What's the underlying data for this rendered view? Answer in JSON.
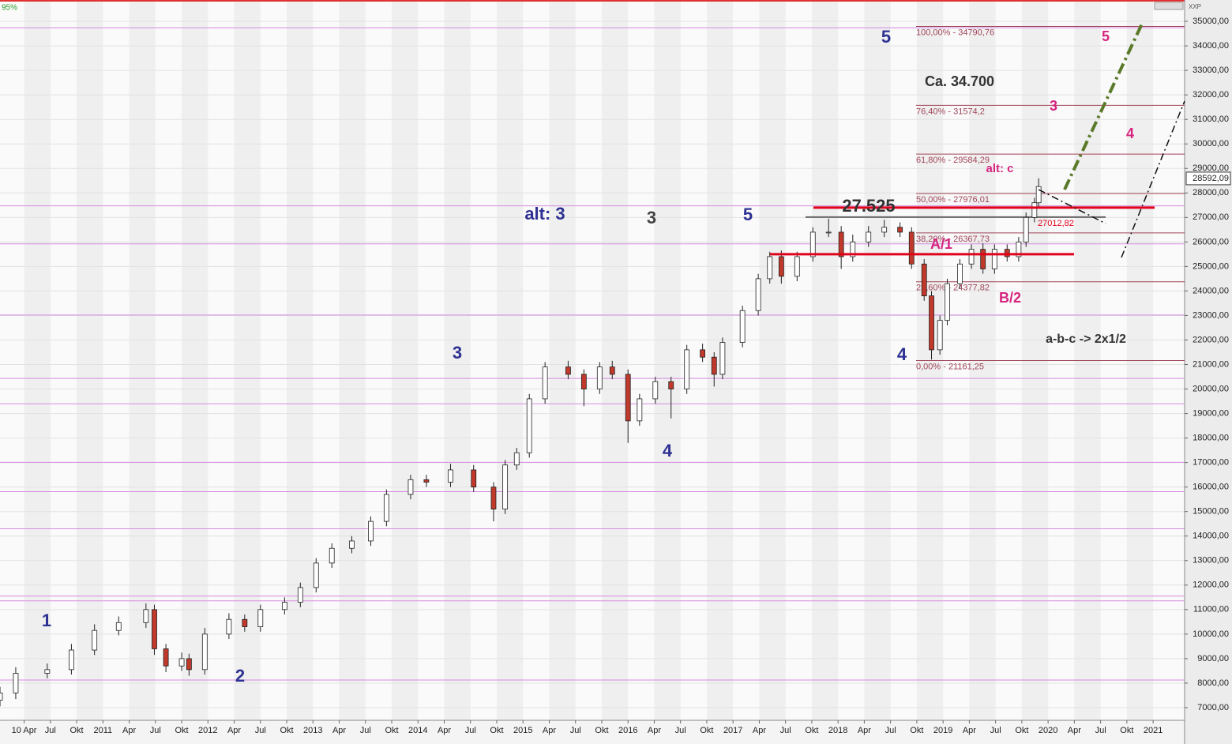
{
  "chart_data": {
    "type": "candlestick",
    "top_left_label": "95%",
    "corner_label": "XXP",
    "xlim": [
      2010.02,
      2021.3
    ],
    "ylim": [
      6483,
      35872
    ],
    "xticks": [
      {
        "value": 2010.25,
        "label": "10 Apr"
      },
      {
        "value": 2010.5,
        "label": "Jul"
      },
      {
        "value": 2010.75,
        "label": "Okt"
      },
      2011,
      {
        "value": 2011.25,
        "label": "Apr"
      },
      {
        "value": 2011.5,
        "label": "Jul"
      },
      {
        "value": 2011.75,
        "label": "Okt"
      },
      2012,
      {
        "value": 2012.25,
        "label": "Apr"
      },
      {
        "value": 2012.5,
        "label": "Jul"
      },
      {
        "value": 2012.75,
        "label": "Okt"
      },
      2013,
      {
        "value": 2013.25,
        "label": "Apr"
      },
      {
        "value": 2013.5,
        "label": "Jul"
      },
      {
        "value": 2013.75,
        "label": "Okt"
      },
      2014,
      {
        "value": 2014.25,
        "label": "Apr"
      },
      {
        "value": 2014.5,
        "label": "Jul"
      },
      {
        "value": 2014.75,
        "label": "Okt"
      },
      2015,
      {
        "value": 2015.25,
        "label": "Apr"
      },
      {
        "value": 2015.5,
        "label": "Jul"
      },
      {
        "value": 2015.75,
        "label": "Okt"
      },
      2016,
      {
        "value": 2016.25,
        "label": "Apr"
      },
      {
        "value": 2016.5,
        "label": "Jul"
      },
      {
        "value": 2016.75,
        "label": "Okt"
      },
      2017,
      {
        "value": 2017.25,
        "label": "Apr"
      },
      {
        "value": 2017.5,
        "label": "Jul"
      },
      {
        "value": 2017.75,
        "label": "Okt"
      },
      2018,
      {
        "value": 2018.25,
        "label": "Apr"
      },
      {
        "value": 2018.5,
        "label": "Jul"
      },
      {
        "value": 2018.75,
        "label": "Okt"
      },
      2019,
      {
        "value": 2019.25,
        "label": "Apr"
      },
      {
        "value": 2019.5,
        "label": "Jul"
      },
      {
        "value": 2019.75,
        "label": "Okt"
      },
      2020,
      {
        "value": 2020.25,
        "label": "Apr"
      },
      {
        "value": 2020.5,
        "label": "Jul"
      },
      {
        "value": 2020.75,
        "label": "Okt"
      },
      2021
    ],
    "yticks": [
      {
        "value": 7000,
        "label": "7000,00"
      },
      {
        "value": 8000,
        "label": "8000,00"
      },
      {
        "value": 9000,
        "label": "9000,00"
      },
      {
        "value": 10000,
        "label": "10000,00"
      },
      {
        "value": 11000,
        "label": "11000,00"
      },
      {
        "value": 12000,
        "label": "12000,00"
      },
      {
        "value": 13000,
        "label": "13000,00"
      },
      {
        "value": 14000,
        "label": "14000,00"
      },
      {
        "value": 15000,
        "label": "15000,00"
      },
      {
        "value": 16000,
        "label": "16000,00"
      },
      {
        "value": 17000,
        "label": "17000,00"
      },
      {
        "value": 18000,
        "label": "18000,00"
      },
      {
        "value": 19000,
        "label": "19000,00"
      },
      {
        "value": 20000,
        "label": "20000,00"
      },
      {
        "value": 21000,
        "label": "21000,00"
      },
      {
        "value": 22000,
        "label": "22000,00"
      },
      {
        "value": 23000,
        "label": "23000,00"
      },
      {
        "value": 24000,
        "label": "24000,00"
      },
      {
        "value": 25000,
        "label": "25000,00"
      },
      {
        "value": 26000,
        "label": "26000,00"
      },
      {
        "value": 27000,
        "label": "27000,00"
      },
      {
        "value": 28000,
        "label": "28000,00"
      },
      {
        "value": 29000,
        "label": "29000,00"
      },
      {
        "value": 30000,
        "label": "30000,00"
      },
      {
        "value": 31000,
        "label": "31000,00"
      },
      {
        "value": 32000,
        "label": "32000,00"
      },
      {
        "value": 33000,
        "label": "33000,00"
      },
      {
        "value": 34000,
        "label": "34000,00"
      },
      {
        "value": 35000,
        "label": "35000,00"
      }
    ],
    "last_price": {
      "value": 28592.09,
      "label": "28592,09"
    },
    "x": [
      2010.02,
      2010.17,
      2010.47,
      2010.7,
      2010.92,
      2011.15,
      2011.41,
      2011.49,
      2011.6,
      2011.75,
      2011.82,
      2011.97,
      2012.2,
      2012.35,
      2012.5,
      2012.73,
      2012.88,
      2013.03,
      2013.18,
      2013.37,
      2013.55,
      2013.7,
      2013.93,
      2014.08,
      2014.31,
      2014.53,
      2014.72,
      2014.83,
      2014.94,
      2015.06,
      2015.21,
      2015.43,
      2015.58,
      2015.73,
      2015.85,
      2016.0,
      2016.11,
      2016.26,
      2016.41,
      2016.56,
      2016.71,
      2016.82,
      2016.9,
      2017.09,
      2017.24,
      2017.35,
      2017.46,
      2017.61,
      2017.76,
      2017.91,
      2018.03,
      2018.14,
      2018.29,
      2018.44,
      2018.59,
      2018.7,
      2018.82,
      2018.89,
      2018.97,
      2019.04,
      2019.16,
      2019.27,
      2019.38,
      2019.49,
      2019.61,
      2019.72,
      2019.79,
      2019.87,
      2019.91
    ],
    "open": [
      7300,
      7600,
      8400,
      8550,
      9350,
      10150,
      10470,
      11000,
      9400,
      8700,
      9000,
      8550,
      10000,
      10600,
      10300,
      11000,
      11300,
      11900,
      12900,
      13500,
      13800,
      14600,
      15700,
      16300,
      16200,
      16700,
      16000,
      15100,
      16900,
      17400,
      19600,
      20900,
      20600,
      20000,
      20900,
      20600,
      18700,
      19600,
      20300,
      20000,
      21600,
      21300,
      20600,
      21900,
      23200,
      24500,
      25400,
      24600,
      25400,
      26400,
      26400,
      25400,
      26000,
      26400,
      26600,
      26400,
      25100,
      23800,
      21600,
      22800,
      24300,
      25100,
      25700,
      24900,
      25700,
      25400,
      26000,
      27000,
      27600
    ],
    "high": [
      7850,
      8650,
      8800,
      9600,
      10400,
      10720,
      11250,
      11200,
      9600,
      9250,
      9200,
      10250,
      10850,
      10800,
      11200,
      11500,
      12100,
      13100,
      13700,
      14000,
      14800,
      15900,
      16500,
      16500,
      16950,
      16900,
      16200,
      17100,
      17600,
      19800,
      21100,
      21150,
      20800,
      21100,
      21150,
      20800,
      19800,
      20500,
      20500,
      21800,
      21850,
      21500,
      22100,
      23400,
      24700,
      25600,
      25650,
      25600,
      26600,
      26950,
      26650,
      26300,
      26650,
      26900,
      26800,
      26600,
      25300,
      24000,
      23000,
      24500,
      25300,
      25900,
      25950,
      25900,
      25900,
      26200,
      27200,
      27800,
      28600
    ],
    "low": [
      7050,
      7350,
      8200,
      8350,
      9150,
      9950,
      10250,
      9150,
      8450,
      8500,
      8300,
      8350,
      9800,
      10100,
      10100,
      10800,
      11100,
      11700,
      12700,
      13300,
      13600,
      14400,
      15500,
      16000,
      16000,
      15800,
      14600,
      14900,
      16700,
      17200,
      19400,
      20400,
      19300,
      19800,
      20400,
      17800,
      18500,
      19400,
      18800,
      19800,
      21100,
      20100,
      20400,
      21700,
      23000,
      24300,
      24300,
      24400,
      25200,
      26200,
      24900,
      25200,
      25800,
      26200,
      26200,
      24900,
      23600,
      21200,
      21400,
      22600,
      24100,
      24900,
      24700,
      24700,
      25200,
      25200,
      25800,
      26800,
      27400
    ],
    "close": [
      7600,
      8400,
      8550,
      9350,
      10150,
      10470,
      11000,
      9400,
      8700,
      9000,
      8550,
      10000,
      10600,
      10300,
      11000,
      11300,
      11900,
      12900,
      13500,
      13800,
      14600,
      15700,
      16300,
      16200,
      16700,
      16000,
      15100,
      16900,
      17400,
      19600,
      20900,
      20600,
      20000,
      20900,
      20600,
      18700,
      19600,
      20300,
      20000,
      21600,
      21300,
      20600,
      21900,
      23200,
      24500,
      25400,
      24600,
      25400,
      26400,
      26400,
      25400,
      26000,
      26400,
      26600,
      26400,
      25100,
      23800,
      21600,
      22800,
      24300,
      25100,
      25700,
      24900,
      25700,
      25400,
      26000,
      27000,
      27600,
      28260
    ],
    "up_color": "#ffffff",
    "down_color": "#c0392b",
    "levels": [
      34741,
      27474,
      25924,
      23017,
      20433,
      19399,
      17009,
      15814,
      14296,
      11550,
      11356,
      8126
    ],
    "level_color": "#d58be0",
    "fib_levels": [
      {
        "value": 34790.76,
        "label": "100,00% - 34790,76"
      },
      {
        "value": 31574.2,
        "label": "76,40% - 31574,2"
      },
      {
        "value": 29584.29,
        "label": "61,80% - 29584,29"
      },
      {
        "value": 27976.01,
        "label": "50,00% - 27976,01"
      },
      {
        "value": 26367.73,
        "label": "38,20% - 26367,73"
      },
      {
        "value": 24377.82,
        "label": "23,60% - 24377,82"
      },
      {
        "value": 21161.25,
        "label": "0,00% - 21161,25"
      }
    ],
    "fib_color": "#a0455a",
    "red_levels": [
      27400,
      25500
    ],
    "red_color": "#e0001a",
    "gray_levels": [
      {
        "value": 27012.82,
        "label": "27012,82"
      }
    ],
    "gray_color": "#666666",
    "annotations": [
      {
        "text": "5",
        "color": "#2e3192"
      },
      {
        "text": "5",
        "color": "#d6247f"
      },
      {
        "text": "Ca. 34.700",
        "color": "#333333"
      },
      {
        "text": "3",
        "color": "#d6247f"
      },
      {
        "text": "4",
        "color": "#d6247f"
      },
      {
        "text": "alt: c",
        "color": "#d6247f"
      },
      {
        "text": "27.525",
        "color": "#333333"
      },
      {
        "text": "alt: 3",
        "color": "#2e3192"
      },
      {
        "text": "3",
        "color": "#444444"
      },
      {
        "text": "5",
        "color": "#2e3192"
      },
      {
        "text": "A/1",
        "color": "#d6247f"
      },
      {
        "text": "B/2",
        "color": "#d6247f"
      },
      {
        "text": "a-b-c -> 2x1/2",
        "color": "#333333"
      },
      {
        "text": "3",
        "color": "#2e3192"
      },
      {
        "text": "4",
        "color": "#2e3192"
      },
      {
        "text": "4",
        "color": "#2e3192"
      },
      {
        "text": "1",
        "color": "#2e3192"
      },
      {
        "text": "2",
        "color": "#2e3192"
      }
    ]
  }
}
